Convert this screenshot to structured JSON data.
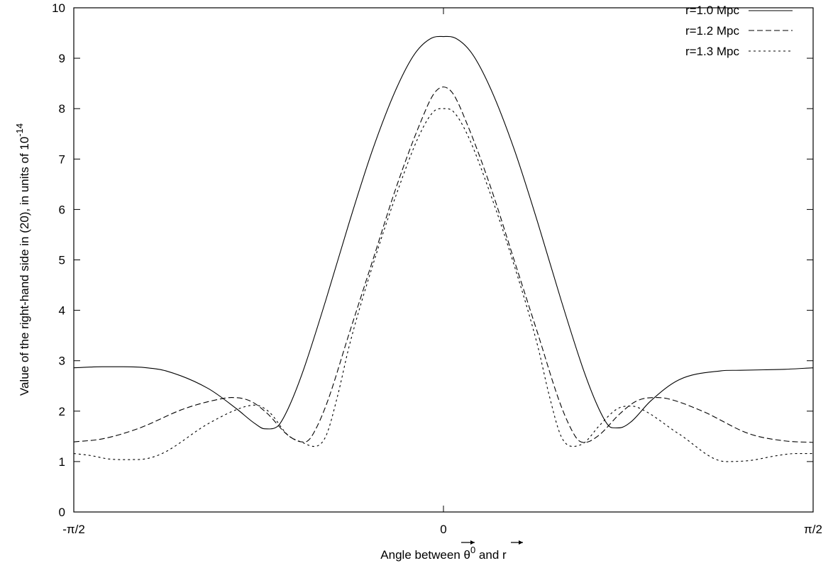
{
  "chart_data": {
    "type": "line",
    "title": "",
    "xlabel_prefix": "Angle between ",
    "xlabel_symbol_theta": "θ",
    "xlabel_theta_superscript": "0",
    "xlabel_middle": " and ",
    "xlabel_symbol_r": "r",
    "ylabel_main": "Value of the right-hand side in (20), in units of 10",
    "ylabel_exponent": "-14",
    "xlim": [
      -1.5708,
      1.5708
    ],
    "ylim": [
      0,
      10
    ],
    "xticks": [
      {
        "value": -1.5708,
        "label": "-π/2"
      },
      {
        "value": 0,
        "label": "0"
      },
      {
        "value": 1.5708,
        "label": "π/2"
      }
    ],
    "yticks": [
      {
        "value": 0,
        "label": "0"
      },
      {
        "value": 1,
        "label": "1"
      },
      {
        "value": 2,
        "label": "2"
      },
      {
        "value": 3,
        "label": "3"
      },
      {
        "value": 4,
        "label": "4"
      },
      {
        "value": 5,
        "label": "5"
      },
      {
        "value": 6,
        "label": "6"
      },
      {
        "value": 7,
        "label": "7"
      },
      {
        "value": 8,
        "label": "8"
      },
      {
        "value": 9,
        "label": "9"
      },
      {
        "value": 10,
        "label": "10"
      }
    ],
    "grid": false,
    "legend_position": "top-right",
    "series": [
      {
        "name": "r=1.0 Mpc",
        "dash": "solid",
        "x": [
          -1.571,
          -1.45,
          -1.36,
          -1.26,
          -1.18,
          -1.0,
          -0.88,
          -0.8,
          -0.76,
          -0.72,
          -0.7,
          -0.66,
          -0.6,
          -0.5,
          -0.4,
          -0.3,
          -0.2,
          -0.12,
          -0.05,
          0.0,
          0.05,
          0.12,
          0.2,
          0.3,
          0.4,
          0.5,
          0.6,
          0.66,
          0.7,
          0.72,
          0.76,
          0.8,
          0.88,
          1.0,
          1.18,
          1.26,
          1.36,
          1.45,
          1.571
        ],
        "y": [
          2.86,
          2.88,
          2.88,
          2.86,
          2.8,
          2.45,
          2.05,
          1.75,
          1.65,
          1.66,
          1.72,
          2.05,
          2.75,
          4.2,
          5.75,
          7.2,
          8.4,
          9.1,
          9.4,
          9.43,
          9.4,
          9.1,
          8.4,
          7.2,
          5.75,
          4.2,
          2.75,
          2.05,
          1.72,
          1.67,
          1.68,
          1.8,
          2.2,
          2.62,
          2.8,
          2.81,
          2.82,
          2.83,
          2.86
        ]
      },
      {
        "name": "r=1.2 Mpc",
        "dash": "dashed",
        "x": [
          -1.571,
          -1.45,
          -1.3,
          -1.1,
          -0.95,
          -0.9,
          -0.82,
          -0.75,
          -0.66,
          -0.6,
          -0.58,
          -0.56,
          -0.5,
          -0.4,
          -0.3,
          -0.2,
          -0.1,
          -0.04,
          0.0,
          0.04,
          0.1,
          0.2,
          0.3,
          0.4,
          0.5,
          0.56,
          0.58,
          0.6,
          0.66,
          0.75,
          0.82,
          0.9,
          0.95,
          1.1,
          1.3,
          1.45,
          1.571
        ],
        "y": [
          1.39,
          1.45,
          1.65,
          2.05,
          2.24,
          2.27,
          2.2,
          1.96,
          1.52,
          1.39,
          1.4,
          1.5,
          2.1,
          3.55,
          5.0,
          6.45,
          7.7,
          8.3,
          8.43,
          8.3,
          7.7,
          6.45,
          5.0,
          3.55,
          2.1,
          1.5,
          1.4,
          1.38,
          1.52,
          1.95,
          2.2,
          2.27,
          2.25,
          2.0,
          1.55,
          1.41,
          1.38
        ]
      },
      {
        "name": "r=1.3 Mpc",
        "dash": "dotted",
        "x": [
          -1.571,
          -1.5,
          -1.42,
          -1.3,
          -1.2,
          -1.0,
          -0.85,
          -0.8,
          -0.74,
          -0.66,
          -0.6,
          -0.55,
          -0.5,
          -0.45,
          -0.4,
          -0.3,
          -0.2,
          -0.1,
          -0.04,
          0.0,
          0.04,
          0.1,
          0.2,
          0.3,
          0.4,
          0.45,
          0.5,
          0.55,
          0.6,
          0.66,
          0.74,
          0.8,
          0.85,
          1.0,
          1.2,
          1.3,
          1.42,
          1.5,
          1.571
        ],
        "y": [
          1.16,
          1.12,
          1.05,
          1.04,
          1.15,
          1.75,
          2.08,
          2.12,
          1.98,
          1.52,
          1.38,
          1.3,
          1.5,
          2.3,
          3.3,
          4.9,
          6.3,
          7.5,
          7.95,
          8.0,
          7.95,
          7.5,
          6.3,
          4.9,
          3.3,
          2.3,
          1.5,
          1.3,
          1.38,
          1.7,
          2.05,
          2.1,
          2.02,
          1.55,
          1.0,
          1.02,
          1.12,
          1.16,
          1.16
        ]
      }
    ]
  }
}
